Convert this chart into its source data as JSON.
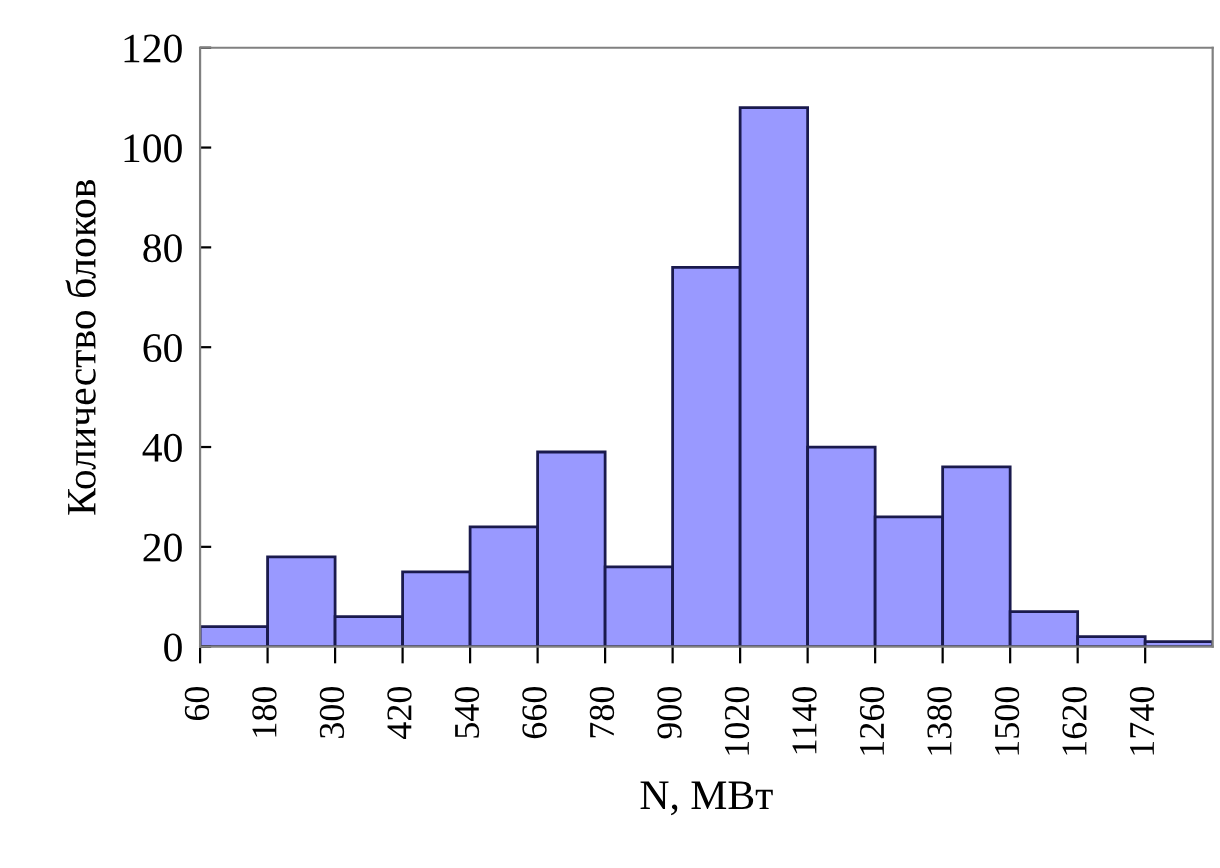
{
  "chart_data": {
    "type": "histogram",
    "xlabel": "N, МВт",
    "ylabel": "Количество блоков",
    "bins": [
      60,
      180,
      300,
      420,
      540,
      660,
      780,
      900,
      1020,
      1140,
      1260,
      1380,
      1500,
      1620,
      1740,
      1860
    ],
    "values": [
      4,
      18,
      6,
      15,
      24,
      39,
      16,
      76,
      108,
      40,
      26,
      36,
      7,
      2,
      1
    ],
    "color": "#9999ff",
    "xlim": [
      60,
      1860
    ],
    "xticks": [
      60,
      180,
      300,
      420,
      540,
      660,
      780,
      900,
      1020,
      1140,
      1260,
      1380,
      1500,
      1620,
      1740
    ],
    "ylim": [
      0,
      120
    ],
    "yticks": [
      0,
      20,
      40,
      60,
      80,
      100,
      120
    ],
    "grid": false,
    "legend": false
  }
}
